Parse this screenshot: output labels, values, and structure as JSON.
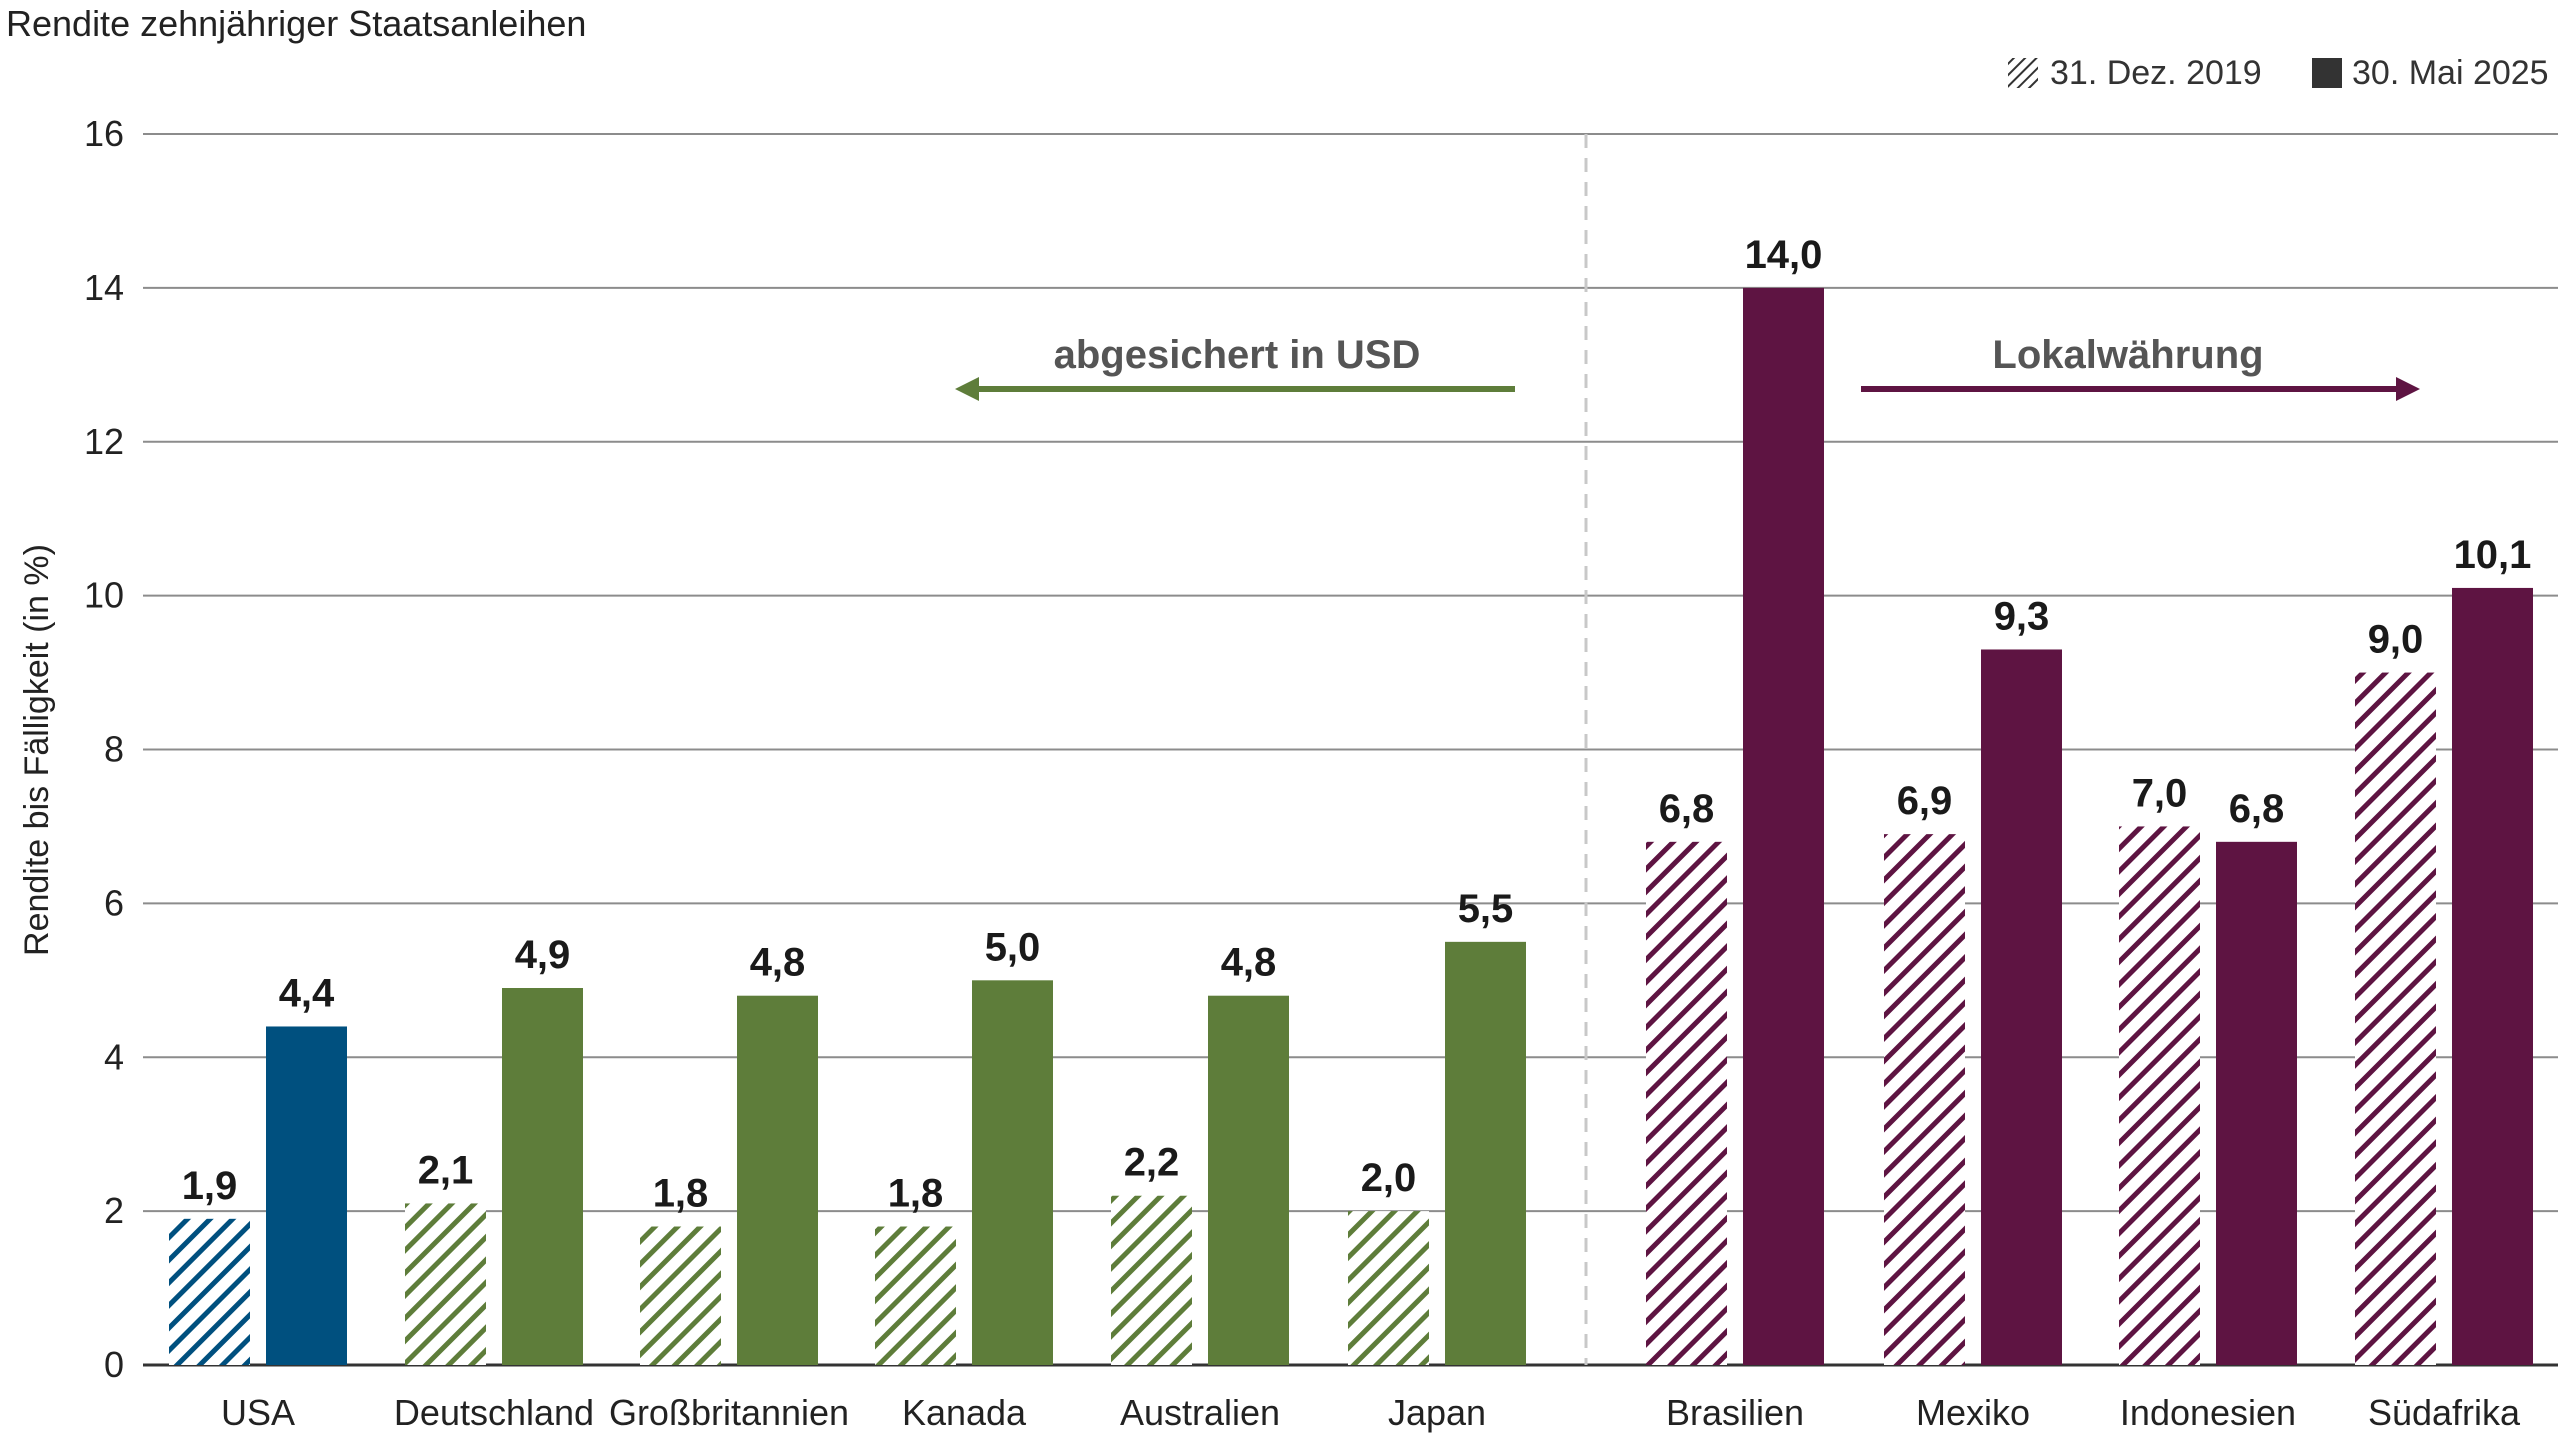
{
  "colors": {
    "usa": "#00507f",
    "hedged": "#5e7d3a",
    "local": "#5e1442",
    "grid": "#8c8c8c",
    "axis": "#333333",
    "divider": "#c8c8c8",
    "legend_mark": "#333333"
  },
  "chart_data": {
    "type": "bar",
    "title": "Rendite zehnjähriger Staatsanleihen",
    "ylabel": "Rendite bis Fälligkeit (in %)",
    "ylim": [
      0,
      16
    ],
    "yticks": [
      0,
      2,
      4,
      6,
      8,
      10,
      12,
      14,
      16
    ],
    "grid": true,
    "legend_position": "top-right",
    "categories": [
      "USA",
      "Deutschland",
      "Großbritannien",
      "Kanada",
      "Australien",
      "Japan",
      "Brasilien",
      "Mexiko",
      "Indonesien",
      "Südafrika"
    ],
    "category_groups": [
      "usa",
      "hedged",
      "hedged",
      "hedged",
      "hedged",
      "hedged",
      "local",
      "local",
      "local",
      "local"
    ],
    "series": [
      {
        "name": "31. Dez. 2019",
        "pattern": "hatched",
        "values": [
          1.9,
          2.1,
          1.8,
          1.8,
          2.2,
          2.0,
          6.8,
          6.9,
          7.0,
          9.0
        ],
        "labels": [
          "1,9",
          "2,1",
          "1,8",
          "1,8",
          "2,2",
          "2,0",
          "6,8",
          "6,9",
          "7,0",
          "9,0"
        ]
      },
      {
        "name": "30. Mai 2025",
        "pattern": "solid",
        "values": [
          4.4,
          4.9,
          4.8,
          5.0,
          4.8,
          5.5,
          14.0,
          9.3,
          6.8,
          10.1
        ],
        "labels": [
          "4,4",
          "4,9",
          "4,8",
          "5,0",
          "4,8",
          "5,5",
          "14,0",
          "9,3",
          "6,8",
          "10,1"
        ]
      }
    ],
    "annotations": [
      {
        "text": "abgesichert in USD",
        "direction": "left",
        "group": "hedged"
      },
      {
        "text": "Lokalwährung",
        "direction": "right",
        "group": "local"
      }
    ]
  }
}
